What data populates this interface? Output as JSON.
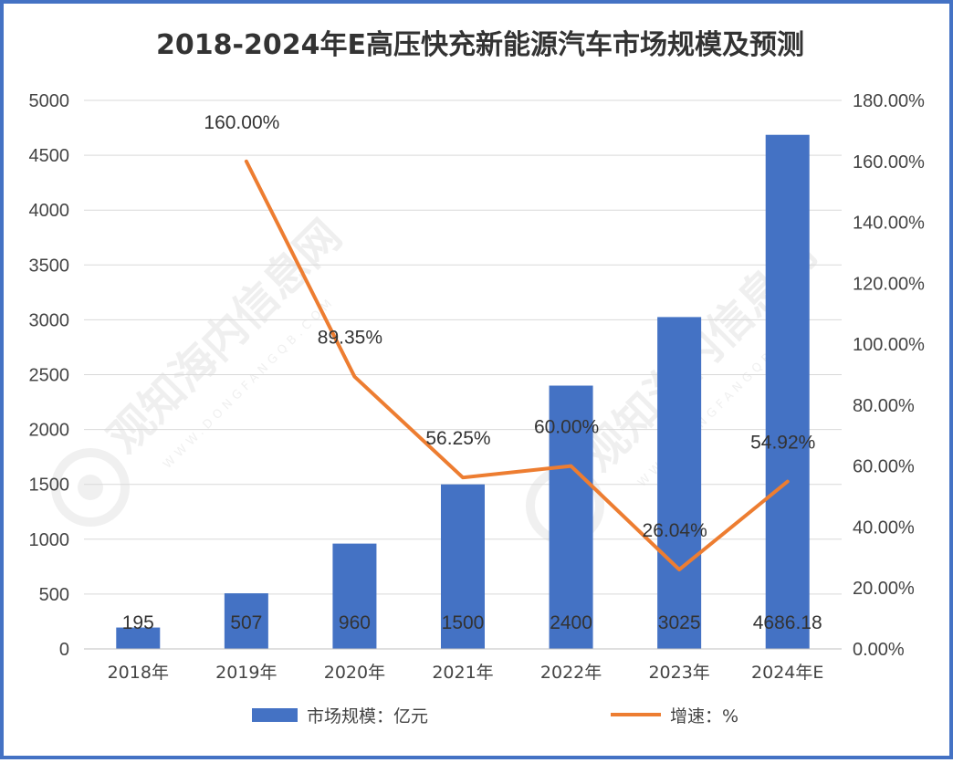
{
  "chart_data": {
    "type": "bar",
    "title": "2018-2024年E高压快充新能源汽车市场规模及预测",
    "categories": [
      "2018年",
      "2019年",
      "2020年",
      "2021年",
      "2022年",
      "2023年",
      "2024年E"
    ],
    "series": [
      {
        "name": "市场规模：亿元",
        "type": "bar",
        "axis": "left",
        "color": "#4472C4",
        "values": [
          195,
          507,
          960,
          1500,
          2400,
          3025,
          4686.18
        ],
        "labels": [
          "195",
          "507",
          "960",
          "1500",
          "2400",
          "3025",
          "4686.18"
        ]
      },
      {
        "name": "增速：%",
        "type": "line",
        "axis": "right",
        "color": "#ED7D31",
        "x": [
          "2019年",
          "2020年",
          "2021年",
          "2022年",
          "2023年",
          "2024年E"
        ],
        "values": [
          160.0,
          89.35,
          56.25,
          60.0,
          26.04,
          54.92
        ],
        "labels": [
          "160.00%",
          "89.35%",
          "56.25%",
          "60.00%",
          "26.04%",
          "54.92%"
        ]
      }
    ],
    "y_left": {
      "ylim": [
        0,
        5000
      ],
      "ticks": [
        "0",
        "500",
        "1000",
        "1500",
        "2000",
        "2500",
        "3000",
        "3500",
        "4000",
        "4500",
        "5000"
      ]
    },
    "y_right": {
      "ylim": [
        0,
        180
      ],
      "ticks": [
        "0.00%",
        "20.00%",
        "40.00%",
        "60.00%",
        "80.00%",
        "100.00%",
        "120.00%",
        "140.00%",
        "160.00%",
        "180.00%"
      ]
    },
    "grid": true,
    "legend_position": "bottom"
  },
  "watermark": {
    "text": "观知海内信息网",
    "subtext": "WWW.DONGFANGQB.COM"
  },
  "colors": {
    "frame": "#4472C4",
    "bar": "#4472C4",
    "line": "#ED7D31",
    "grid": "#D9D9D9"
  }
}
